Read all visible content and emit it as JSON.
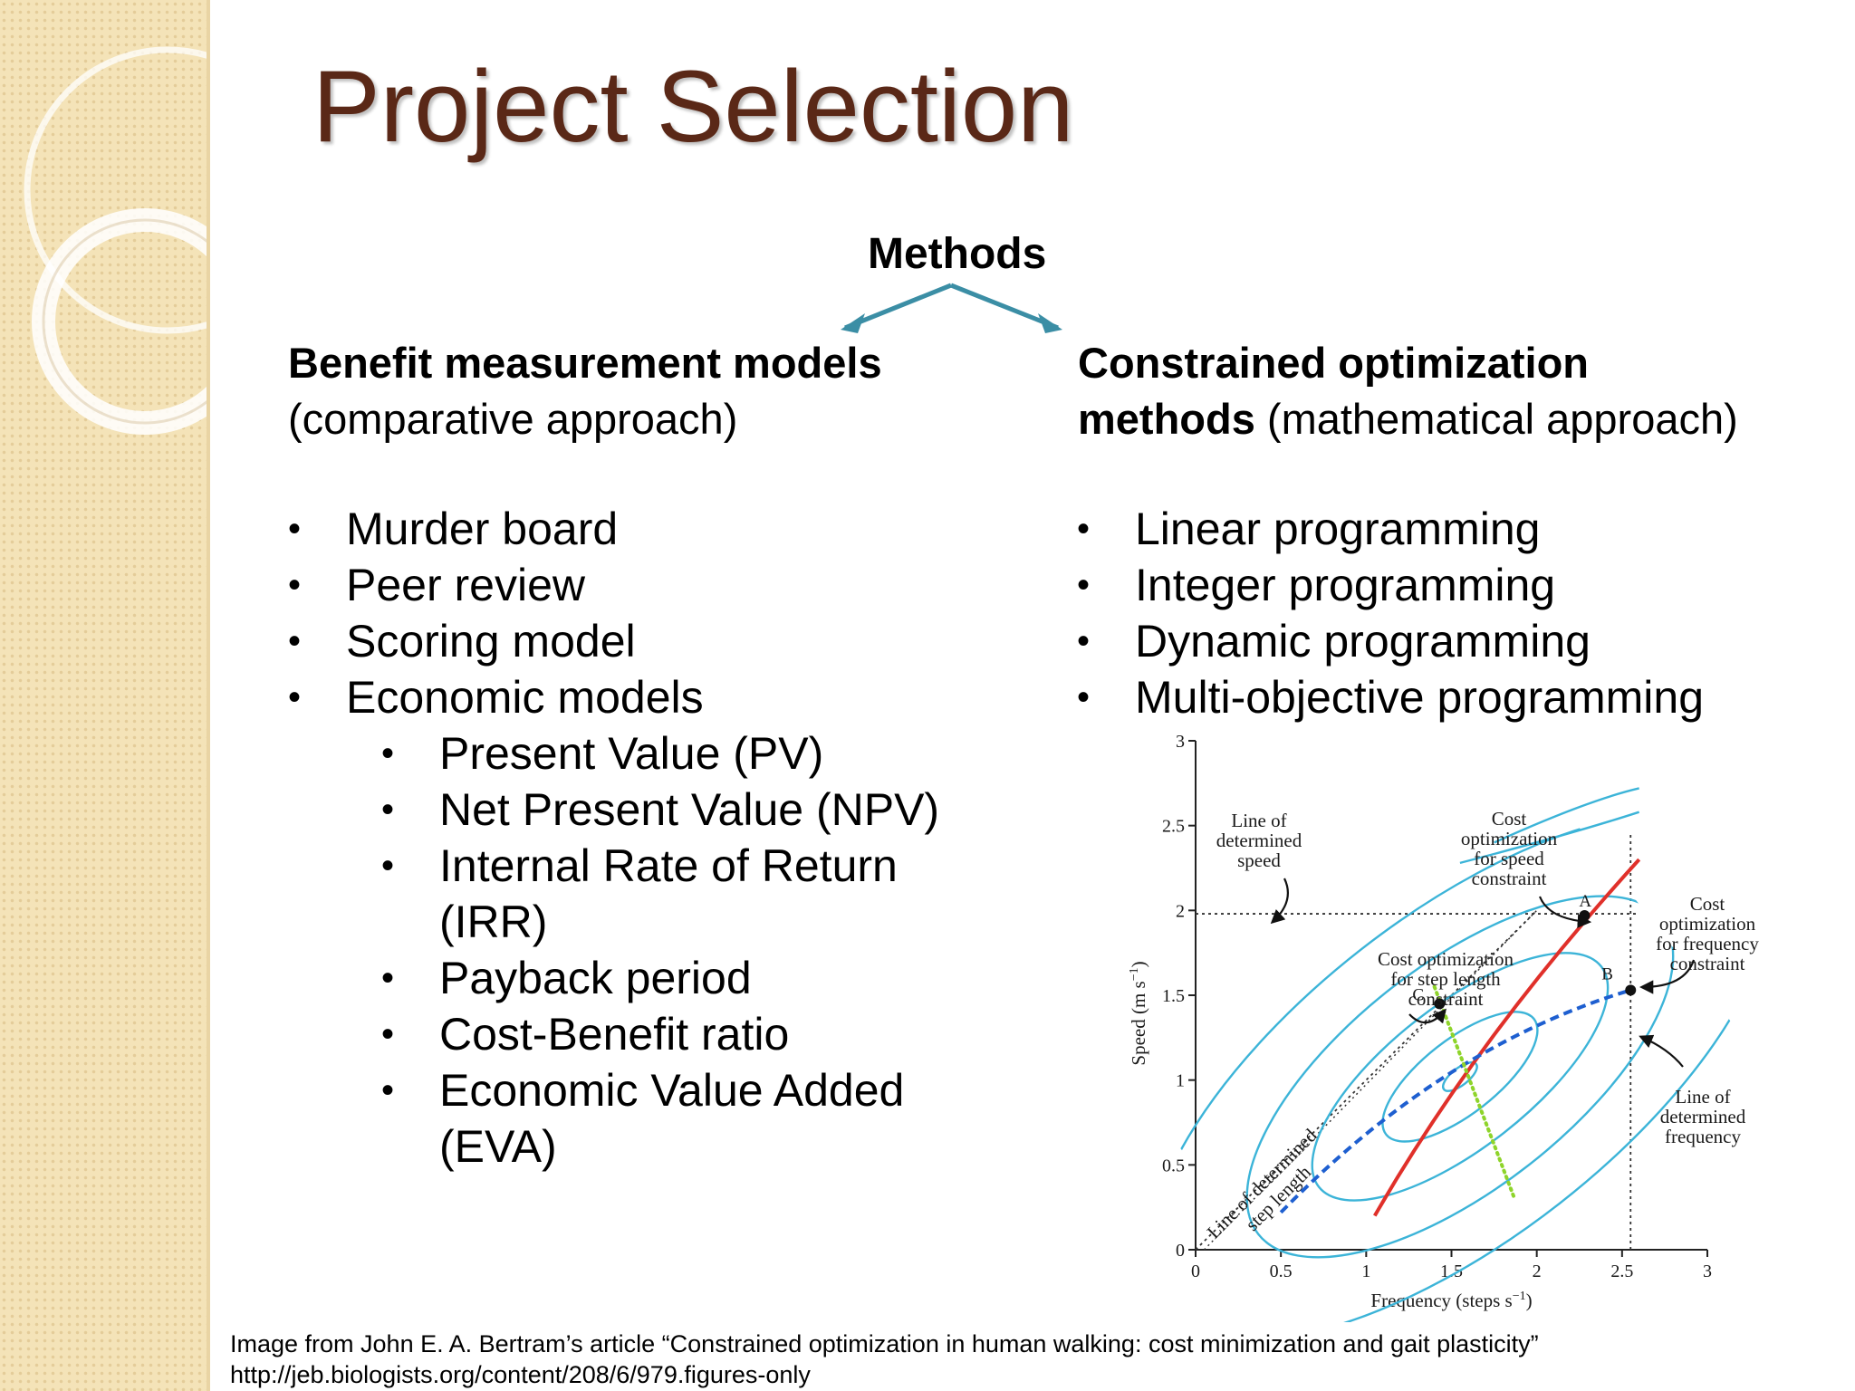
{
  "slide": {
    "title": "Project Selection",
    "methods_label": "Methods",
    "left": {
      "heading_bold": "Benefit measurement models",
      "heading_rest": "(comparative approach)",
      "items": [
        "Murder board",
        "Peer review",
        "Scoring model",
        "Economic models"
      ],
      "subitems": [
        "Present Value (PV)",
        "Net Present Value (NPV)",
        "Internal Rate of Return",
        "(IRR)",
        "Payback period",
        "Cost-Benefit ratio",
        "Economic Value Added",
        "(EVA)"
      ]
    },
    "right": {
      "heading_bold_1": "Constrained optimization",
      "heading_bold_2": "methods",
      "heading_rest": "(mathematical approach)",
      "items": [
        "Linear programming",
        "Integer programming",
        "Dynamic programming",
        "Multi-objective programming"
      ]
    },
    "bullet_char": "•",
    "caption_line1": "Image from John E. A. Bertram’s article “Constrained optimization in human walking: cost minimization and gait plasticity”",
    "caption_line2": "http://jeb.biologists.org/content/208/6/979.figures-only"
  },
  "chart_data": {
    "type": "line",
    "xlabel": "Frequency (steps s",
    "xlabel_sup": "−1",
    "xlabel_end": ")",
    "ylabel": "Speed (m s",
    "ylabel_sup": "−1",
    "ylabel_end": ")",
    "xlim": [
      0,
      3
    ],
    "ylim": [
      0,
      3
    ],
    "xticks": [
      "0",
      "0.5",
      "1",
      "1.5",
      "2",
      "2.5",
      "3"
    ],
    "yticks": [
      "0",
      "0.5",
      "1",
      "1.5",
      "2",
      "2.5",
      "3"
    ],
    "determined_speed": 1.98,
    "determined_frequency": 2.55,
    "points": [
      {
        "label": "A",
        "x": 2.28,
        "y": 1.97
      },
      {
        "label": "B",
        "x": 2.55,
        "y": 1.53
      },
      {
        "label": "C",
        "x": 1.43,
        "y": 1.45
      }
    ],
    "annotations": {
      "line_of_determined_speed": [
        "Line of",
        "determined",
        "speed"
      ],
      "cost_opt_speed": [
        "Cost",
        "optimization",
        "for speed",
        "constraint"
      ],
      "cost_opt_frequency": [
        "Cost",
        "optimization",
        "for frequency",
        "constraint"
      ],
      "cost_opt_step_length": [
        "Cost optimization",
        "for step length",
        "constraint"
      ],
      "line_of_determined_frequency": [
        "Line of",
        "determined",
        "frequency"
      ],
      "line_of_determined_step_length": [
        "Line of determined",
        "step length"
      ]
    },
    "colors": {
      "contour": "#3cb4d8",
      "red_line": "#e0302a",
      "blue_dashed": "#1e5fd0",
      "green_dotted": "#8ed42a"
    }
  }
}
